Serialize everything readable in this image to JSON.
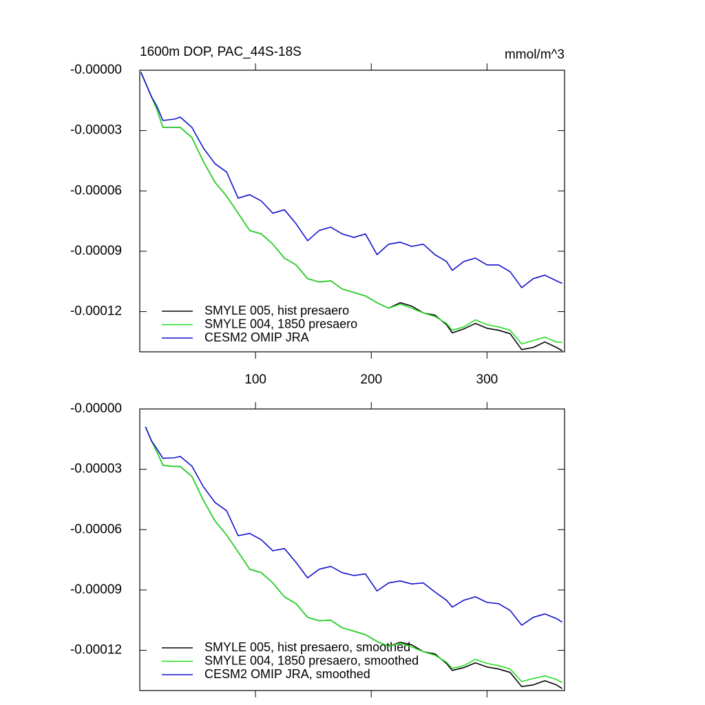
{
  "chart_data": [
    {
      "type": "line",
      "title": "1600m DOP, PAC_44S-18S",
      "units": "mmol/m^3",
      "x": [
        1,
        10,
        15,
        20,
        30,
        35,
        45,
        55,
        65,
        75,
        85,
        95,
        105,
        115,
        125,
        135,
        145,
        155,
        165,
        175,
        185,
        195,
        205,
        215,
        225,
        235,
        245,
        255,
        265,
        270,
        280,
        290,
        300,
        310,
        320,
        330,
        340,
        350,
        360,
        365
      ],
      "series": [
        {
          "name": "SMYLE 005, hist presaero",
          "color": "#000000",
          "values": [
            -1e-06,
            -1.3e-05,
            -1.98e-05,
            -2.84e-05,
            -2.84e-05,
            -2.84e-05,
            -3.35e-05,
            -4.55e-05,
            -5.57e-05,
            -6.26e-05,
            -7.11e-05,
            -7.97e-05,
            -8.14e-05,
            -8.65e-05,
            -9.34e-05,
            -9.68e-05,
            -0.0001036,
            -0.0001053,
            -0.0001047,
            -0.0001088,
            -0.0001105,
            -0.0001122,
            -0.0001156,
            -0.0001183,
            -0.0001156,
            -0.0001173,
            -0.0001207,
            -0.0001218,
            -0.0001265,
            -0.0001306,
            -0.0001286,
            -0.0001259,
            -0.0001283,
            -0.0001293,
            -0.000131,
            -0.0001389,
            -0.0001378,
            -0.0001351,
            -0.0001378,
            -0.0001395
          ]
        },
        {
          "name": "SMYLE 004, 1850 presaero",
          "color": "#22dd22",
          "values": [
            -1e-06,
            -1.3e-05,
            -1.98e-05,
            -2.84e-05,
            -2.84e-05,
            -2.84e-05,
            -3.35e-05,
            -4.55e-05,
            -5.57e-05,
            -6.26e-05,
            -7.11e-05,
            -7.97e-05,
            -8.14e-05,
            -8.65e-05,
            -9.34e-05,
            -9.68e-05,
            -0.0001036,
            -0.0001053,
            -0.0001047,
            -0.0001088,
            -0.0001105,
            -0.0001122,
            -0.0001156,
            -0.0001183,
            -0.0001163,
            -0.0001183,
            -0.0001207,
            -0.0001224,
            -0.0001259,
            -0.0001293,
            -0.0001276,
            -0.0001241,
            -0.0001265,
            -0.0001276,
            -0.0001293,
            -0.0001361,
            -0.0001344,
            -0.0001327,
            -0.0001351,
            -0.0001354
          ]
        },
        {
          "name": "CESM2 OMIP JRA",
          "color": "#1010cc",
          "values": [
            -1e-06,
            -1.3e-05,
            -1.81e-05,
            -2.5e-05,
            -2.43e-05,
            -2.33e-05,
            -2.84e-05,
            -3.87e-05,
            -4.65e-05,
            -5.06e-05,
            -6.36e-05,
            -6.19e-05,
            -6.5e-05,
            -7.11e-05,
            -6.94e-05,
            -7.63e-05,
            -8.48e-05,
            -7.97e-05,
            -7.8e-05,
            -8.14e-05,
            -8.31e-05,
            -8.14e-05,
            -9.17e-05,
            -8.65e-05,
            -8.55e-05,
            -8.76e-05,
            -8.65e-05,
            -9.17e-05,
            -9.51e-05,
            -9.95e-05,
            -9.51e-05,
            -9.34e-05,
            -9.68e-05,
            -9.68e-05,
            -0.0001002,
            -0.0001081,
            -0.0001036,
            -0.0001019,
            -0.0001047,
            -0.000106
          ]
        }
      ],
      "xlim": [
        0,
        367
      ],
      "xticks": [
        100,
        200,
        300
      ],
      "show_xtick_labels": true,
      "ylim": [
        -0.00014,
        0
      ],
      "yticks": [
        {
          "value": 0,
          "label": "-0.00000"
        },
        -3e-05,
        -6e-05,
        -9e-05,
        -0.00012
      ],
      "grid": false
    },
    {
      "type": "line",
      "x": [
        5,
        10,
        15,
        20,
        30,
        35,
        45,
        55,
        65,
        75,
        85,
        95,
        105,
        115,
        125,
        135,
        145,
        155,
        165,
        175,
        185,
        195,
        205,
        215,
        225,
        235,
        245,
        255,
        265,
        270,
        280,
        290,
        300,
        310,
        320,
        330,
        340,
        350,
        360,
        365
      ],
      "series": [
        {
          "name": "SMYLE 005, hist presaero, smoothed",
          "color": "#000000",
          "values": [
            -8.9e-06,
            -1.57e-05,
            -2.15e-05,
            -2.8e-05,
            -2.86e-05,
            -2.86e-05,
            -3.35e-05,
            -4.55e-05,
            -5.57e-05,
            -6.26e-05,
            -7.11e-05,
            -7.97e-05,
            -8.14e-05,
            -8.65e-05,
            -9.34e-05,
            -9.68e-05,
            -0.0001036,
            -0.0001053,
            -0.000105,
            -0.0001088,
            -0.0001105,
            -0.0001122,
            -0.0001156,
            -0.000118,
            -0.000116,
            -0.0001173,
            -0.0001207,
            -0.0001218,
            -0.0001265,
            -0.00013,
            -0.0001286,
            -0.0001262,
            -0.0001283,
            -0.0001293,
            -0.000131,
            -0.000138,
            -0.0001372,
            -0.0001351,
            -0.0001372,
            -0.000139
          ]
        },
        {
          "name": "SMYLE 004, 1850 presaero, smoothed",
          "color": "#22dd22",
          "values": [
            -8.9e-06,
            -1.57e-05,
            -2.15e-05,
            -2.8e-05,
            -2.86e-05,
            -2.86e-05,
            -3.35e-05,
            -4.55e-05,
            -5.57e-05,
            -6.26e-05,
            -7.11e-05,
            -7.97e-05,
            -8.14e-05,
            -8.65e-05,
            -9.34e-05,
            -9.68e-05,
            -0.0001036,
            -0.0001053,
            -0.000105,
            -0.0001088,
            -0.0001105,
            -0.0001122,
            -0.0001156,
            -0.000118,
            -0.0001165,
            -0.0001183,
            -0.0001207,
            -0.0001224,
            -0.0001259,
            -0.000129,
            -0.0001276,
            -0.0001245,
            -0.0001265,
            -0.0001276,
            -0.0001293,
            -0.0001355,
            -0.000134,
            -0.0001327,
            -0.0001345,
            -0.000136
          ]
        },
        {
          "name": "CESM2 OMIP JRA, smoothed",
          "color": "#1010cc",
          "values": [
            -8.9e-06,
            -1.57e-05,
            -2e-05,
            -2.45e-05,
            -2.43e-05,
            -2.36e-05,
            -2.84e-05,
            -3.87e-05,
            -4.65e-05,
            -5.06e-05,
            -6.3e-05,
            -6.19e-05,
            -6.5e-05,
            -7.05e-05,
            -6.94e-05,
            -7.63e-05,
            -8.4e-05,
            -7.97e-05,
            -7.83e-05,
            -8.14e-05,
            -8.28e-05,
            -8.2e-05,
            -9.05e-05,
            -8.65e-05,
            -8.55e-05,
            -8.7e-05,
            -8.65e-05,
            -9.1e-05,
            -9.51e-05,
            -9.85e-05,
            -9.51e-05,
            -9.34e-05,
            -9.62e-05,
            -9.68e-05,
            -0.0001002,
            -0.0001075,
            -0.0001036,
            -0.0001019,
            -0.0001042,
            -0.000106
          ]
        }
      ],
      "xlim": [
        0,
        367
      ],
      "xticks": [
        100,
        200,
        300
      ],
      "show_xtick_labels": false,
      "ylim": [
        -0.00014,
        0
      ],
      "yticks": [
        {
          "value": 0,
          "label": "-0.00000"
        },
        -3e-05,
        -6e-05,
        -9e-05,
        -0.00012
      ],
      "grid": false
    }
  ]
}
